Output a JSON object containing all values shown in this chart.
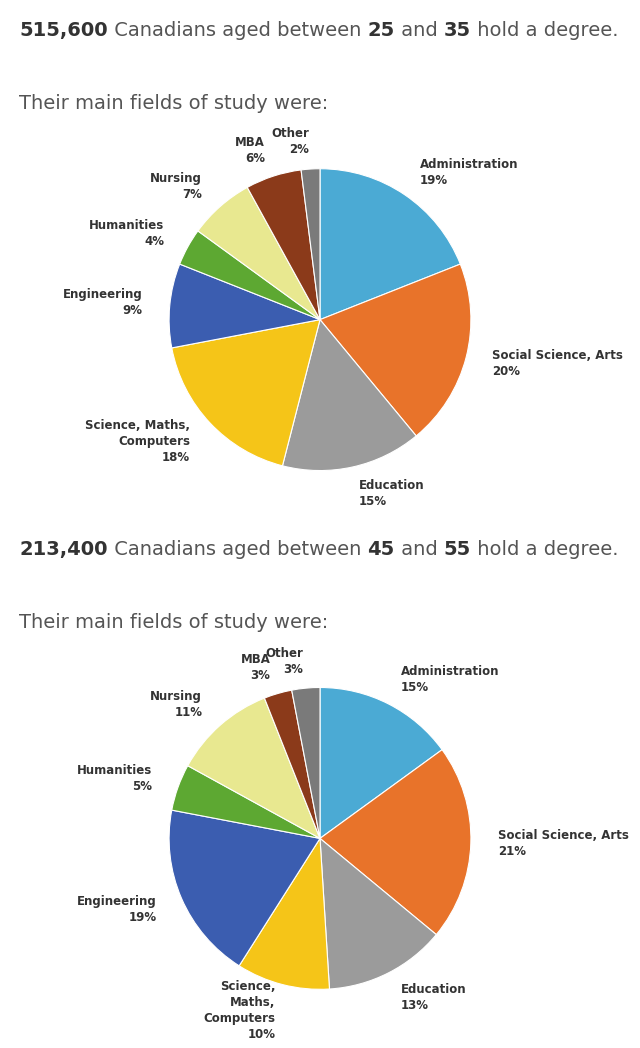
{
  "chart1": {
    "title_line1_parts": [
      [
        "515,600",
        true
      ],
      [
        " Canadians aged between ",
        false
      ],
      [
        "25",
        true
      ],
      [
        " and ",
        false
      ],
      [
        "35",
        true
      ],
      [
        " hold a degree.",
        false
      ]
    ],
    "title_line2": "Their main fields of study were:",
    "labels": [
      "Administration",
      "Social Science, Arts",
      "Education",
      "Science, Maths,\nComputers",
      "Engineering",
      "Humanities",
      "Nursing",
      "MBA",
      "Other"
    ],
    "values": [
      19,
      20,
      15,
      18,
      9,
      4,
      7,
      6,
      2
    ],
    "colors": [
      "#4BAAD4",
      "#E8732A",
      "#9B9B9B",
      "#F5C518",
      "#3B5DB0",
      "#5DA832",
      "#E8E890",
      "#8B3A1A",
      "#7A7A7A"
    ],
    "startangle": 90
  },
  "chart2": {
    "title_line1_parts": [
      [
        "213,400",
        true
      ],
      [
        " Canadians aged between ",
        false
      ],
      [
        "45",
        true
      ],
      [
        " and ",
        false
      ],
      [
        "55",
        true
      ],
      [
        " hold a degree.",
        false
      ]
    ],
    "title_line2": "Their main fields of study were:",
    "labels": [
      "Administration",
      "Social Science, Arts",
      "Education",
      "Science,\nMaths,\nComputers",
      "Engineering",
      "Humanities",
      "Nursing",
      "MBA",
      "Other"
    ],
    "values": [
      15,
      21,
      13,
      10,
      19,
      5,
      11,
      3,
      3
    ],
    "colors": [
      "#4BAAD4",
      "#E8732A",
      "#9B9B9B",
      "#F5C518",
      "#3B5DB0",
      "#5DA832",
      "#E8E890",
      "#8B3A1A",
      "#7A7A7A"
    ],
    "startangle": 90
  },
  "bg_color": "#FFFFFF",
  "text_color": "#555555",
  "bold_color": "#333333",
  "label_color": "#333333",
  "title_fontsize": 14,
  "label_fontsize": 8.5
}
